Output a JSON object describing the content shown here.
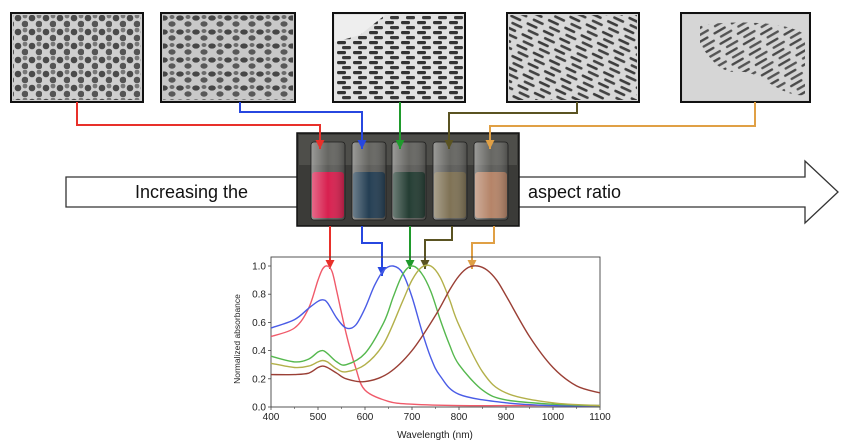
{
  "arrow_text": {
    "left": "Increasing the",
    "right": "aspect ratio"
  },
  "colors": {
    "red": "#e8302a",
    "blue": "#2747e0",
    "green": "#1f9a2c",
    "olive": "#5a5322",
    "orange": "#e0a045",
    "curve_red": "#f05a6a",
    "curve_blue": "#4a5ce6",
    "curve_green": "#55b84e",
    "curve_yellow": "#b3b04a",
    "curve_brown": "#9a3f35"
  },
  "micrographs": [
    {
      "name": "tem-image-1",
      "particle": "spheres"
    },
    {
      "name": "tem-image-2",
      "particle": "short-rods"
    },
    {
      "name": "tem-image-3",
      "particle": "rods"
    },
    {
      "name": "tem-image-4",
      "particle": "long-rods"
    },
    {
      "name": "tem-image-5",
      "particle": "very-long-rods"
    }
  ],
  "vials": [
    {
      "name": "vial-1",
      "color": "#d8204f"
    },
    {
      "name": "vial-2",
      "color": "#243e53"
    },
    {
      "name": "vial-3",
      "color": "#243d33"
    },
    {
      "name": "vial-4",
      "color": "#7f7255"
    },
    {
      "name": "vial-5",
      "color": "#b58468"
    }
  ],
  "chart_data": {
    "type": "line",
    "xlabel": "Wavelength (nm)",
    "ylabel": "Normalized absorbance",
    "xlim": [
      400,
      1100
    ],
    "ylim": [
      0.0,
      1.0
    ],
    "x_ticks": [
      "400",
      "500",
      "600",
      "700",
      "800",
      "900",
      "1000",
      "1100"
    ],
    "y_ticks": [
      "0.0",
      "0.2",
      "0.4",
      "0.6",
      "0.8",
      "1.0"
    ],
    "grid": false,
    "series": [
      {
        "color": "#f05a6a",
        "x": [
          400,
          450,
          480,
          500,
          510,
          520,
          530,
          540,
          560,
          580,
          600,
          650,
          700,
          800,
          900,
          1000,
          1100
        ],
        "y": [
          0.5,
          0.56,
          0.7,
          0.9,
          0.98,
          1.0,
          0.96,
          0.82,
          0.52,
          0.28,
          0.12,
          0.04,
          0.02,
          0.01,
          0.01,
          0.01,
          0.01
        ]
      },
      {
        "color": "#4a5ce6",
        "x": [
          400,
          450,
          480,
          500,
          510,
          520,
          540,
          560,
          580,
          600,
          620,
          640,
          660,
          680,
          700,
          720,
          740,
          760,
          800,
          900,
          1000,
          1100
        ],
        "y": [
          0.56,
          0.62,
          0.7,
          0.75,
          0.76,
          0.74,
          0.63,
          0.56,
          0.58,
          0.7,
          0.86,
          0.97,
          1.0,
          0.95,
          0.78,
          0.55,
          0.35,
          0.22,
          0.09,
          0.03,
          0.01,
          0.01
        ]
      },
      {
        "color": "#55b84e",
        "x": [
          400,
          450,
          480,
          500,
          510,
          520,
          540,
          560,
          600,
          640,
          660,
          680,
          700,
          720,
          740,
          760,
          780,
          800,
          850,
          900,
          1000,
          1100
        ],
        "y": [
          0.36,
          0.32,
          0.34,
          0.39,
          0.4,
          0.38,
          0.32,
          0.3,
          0.38,
          0.6,
          0.78,
          0.94,
          1.0,
          0.95,
          0.82,
          0.62,
          0.44,
          0.3,
          0.12,
          0.05,
          0.02,
          0.01
        ]
      },
      {
        "color": "#b3b04a",
        "x": [
          400,
          450,
          480,
          500,
          510,
          520,
          540,
          560,
          600,
          640,
          680,
          700,
          720,
          740,
          760,
          780,
          800,
          850,
          900,
          1000,
          1100
        ],
        "y": [
          0.31,
          0.28,
          0.29,
          0.32,
          0.33,
          0.32,
          0.27,
          0.25,
          0.3,
          0.45,
          0.75,
          0.9,
          0.99,
          1.0,
          0.92,
          0.76,
          0.58,
          0.25,
          0.1,
          0.03,
          0.01
        ]
      },
      {
        "color": "#9a3f35",
        "x": [
          400,
          450,
          480,
          500,
          510,
          520,
          540,
          560,
          600,
          650,
          700,
          750,
          780,
          800,
          820,
          840,
          860,
          880,
          900,
          950,
          1000,
          1050,
          1100
        ],
        "y": [
          0.23,
          0.23,
          0.24,
          0.28,
          0.29,
          0.28,
          0.24,
          0.2,
          0.18,
          0.24,
          0.4,
          0.65,
          0.83,
          0.93,
          0.99,
          1.0,
          0.97,
          0.9,
          0.79,
          0.5,
          0.28,
          0.15,
          0.1
        ]
      }
    ]
  }
}
